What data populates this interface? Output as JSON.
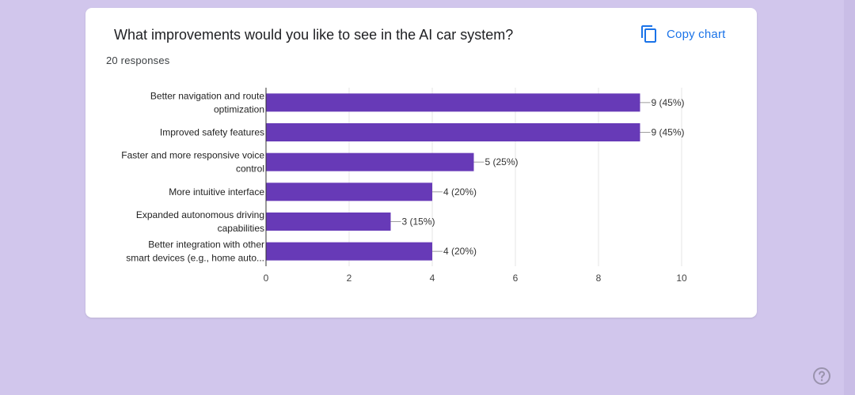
{
  "card": {
    "title": "What improvements would you like to see in the AI car system?",
    "responses": "20 responses",
    "copy_label": "Copy chart"
  },
  "colors": {
    "background": "#d1c6ec",
    "bar": "#673ab7",
    "link": "#1a73e8"
  },
  "icons": {
    "copy": "copy-icon",
    "help": "help-icon"
  },
  "chart_data": {
    "type": "bar",
    "orientation": "horizontal",
    "categories": [
      [
        "Better navigation and route",
        "optimization"
      ],
      [
        "Improved safety features"
      ],
      [
        "Faster and more responsive voice",
        "control"
      ],
      [
        "More intuitive interface"
      ],
      [
        "Expanded autonomous driving",
        "capabilities"
      ],
      [
        "Better integration with other",
        "smart devices (e.g., home auto..."
      ]
    ],
    "values": [
      9,
      9,
      5,
      4,
      3,
      4
    ],
    "data_labels": [
      "9 (45%)",
      "9 (45%)",
      "5 (25%)",
      "4 (20%)",
      "3 (15%)",
      "4 (20%)"
    ],
    "xlim": [
      0,
      10
    ],
    "xticks": [
      0,
      2,
      4,
      6,
      8,
      10
    ],
    "grid": true,
    "legend": "none"
  }
}
